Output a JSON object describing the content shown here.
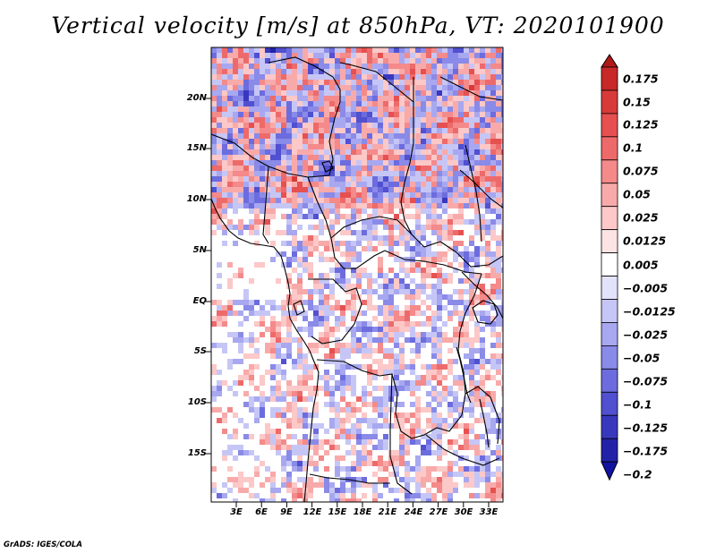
{
  "title": "Vertical velocity [m/s] at 850hPa, VT: 2020101900",
  "credit": "GrADS: IGES/COLA",
  "map": {
    "variable": "Vertical velocity",
    "units": "m/s",
    "level": "850hPa",
    "valid_time": "2020101900",
    "lat_ticks": [
      "20N",
      "15N",
      "10N",
      "5N",
      "EQ",
      "5S",
      "10S",
      "15S"
    ],
    "lon_ticks": [
      "3E",
      "6E",
      "9E",
      "12E",
      "15E",
      "18E",
      "21E",
      "24E",
      "27E",
      "30E",
      "33E"
    ]
  },
  "colorbar": {
    "labels": [
      "0.175",
      "0.15",
      "0.125",
      "0.1",
      "0.075",
      "0.05",
      "0.025",
      "0.0125",
      "0.005",
      "−0.005",
      "−0.0125",
      "−0.025",
      "−0.05",
      "−0.075",
      "−0.1",
      "−0.125",
      "−0.175",
      "−0.2"
    ],
    "colors": [
      "#b01818",
      "#c82828",
      "#d83a3a",
      "#e65050",
      "#ee6a6a",
      "#f48a8a",
      "#f8aaaa",
      "#fcc8c8",
      "#fde4e4",
      "#ffffff",
      "#e2e2fb",
      "#c6c6f6",
      "#a8a8f0",
      "#8a8ae8",
      "#6c6cde",
      "#5050d0",
      "#3838be",
      "#2222a8",
      "#1212a0"
    ]
  }
}
